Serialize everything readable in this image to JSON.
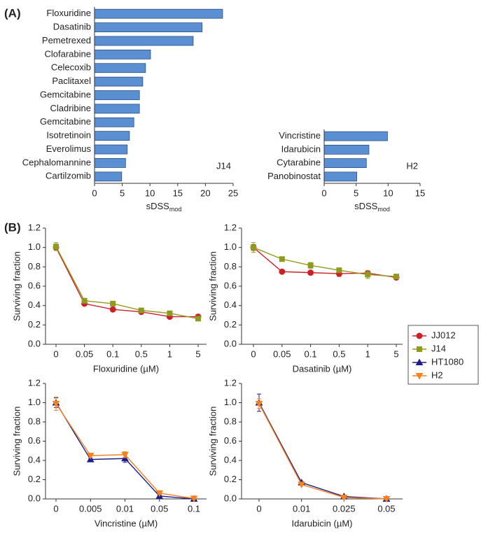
{
  "panel_labels": [
    "(A)",
    "(B)"
  ],
  "chart_data": [
    {
      "type": "hbar",
      "categories": [
        "Floxuridine",
        "Dasatinib",
        "Pemetrexed",
        "Clofarabine",
        "Celecoxib",
        "Paclitaxel",
        "Gemcitabine",
        "Cladribine",
        "Gemcitabine",
        "Isotretinoin",
        "Everolimus",
        "Cephalomannine",
        "Cartilzomib"
      ],
      "values": [
        23.1,
        19.4,
        17.8,
        10.1,
        9.2,
        8.7,
        8.1,
        8.1,
        7.1,
        6.3,
        5.9,
        5.6,
        4.9
      ],
      "color": "#5b8fd4",
      "xlim": [
        0,
        25
      ],
      "xticks": [
        0,
        5,
        10,
        15,
        20,
        25
      ],
      "xlabel": "sDSS",
      "xlabel_sub": "mod",
      "annotation": "J14"
    },
    {
      "type": "hbar",
      "categories": [
        "Vincristine",
        "Idarubicin",
        "Cytarabine",
        "Panobinostat"
      ],
      "values": [
        9.9,
        7.0,
        6.6,
        5.1
      ],
      "color": "#5b8fd4",
      "xlim": [
        0,
        15
      ],
      "xticks": [
        0,
        5,
        10,
        15
      ],
      "xlabel": "sDSS",
      "xlabel_sub": "mod",
      "annotation": "H2"
    },
    {
      "type": "line",
      "categories": [
        "0",
        "0.05",
        "0.1",
        "0.5",
        "1",
        "5"
      ],
      "xlabel": "Floxuridine (µM)",
      "ylabel": "Surviving fraction",
      "ylim": [
        0,
        1.2
      ],
      "yticks": [
        {
          "value": 0,
          "label": "0.0"
        },
        0.2,
        0.4,
        0.6,
        0.8,
        {
          "value": 1,
          "label": "1.0"
        },
        1.2
      ],
      "series": [
        {
          "name": "JJ012",
          "color": "#cc2127",
          "marker": "circle",
          "values": [
            1.0,
            0.42,
            0.36,
            0.335,
            0.285,
            0.285
          ],
          "errors": [
            0.03,
            0.01,
            0.01,
            0.01,
            0.01,
            0.01
          ]
        },
        {
          "name": "J14",
          "color": "#8f9a1e",
          "marker": "square",
          "values": [
            1.01,
            0.45,
            0.42,
            0.35,
            0.32,
            0.265
          ],
          "errors": [
            0.04,
            0.01,
            0.01,
            0.01,
            0.01,
            0.01
          ]
        }
      ]
    },
    {
      "type": "line",
      "categories": [
        "0",
        "0.05",
        "0.1",
        "0.5",
        "1",
        "5"
      ],
      "xlabel": "Dasatinib (µM)",
      "ylabel": "Surviving fraction",
      "ylim": [
        0,
        1.2
      ],
      "yticks": [
        {
          "value": 0,
          "label": "0.0"
        },
        0.2,
        0.4,
        0.6,
        0.8,
        {
          "value": 1,
          "label": "1.0"
        },
        1.2
      ],
      "series": [
        {
          "name": "JJ012",
          "color": "#cc2127",
          "marker": "circle",
          "values": [
            1.0,
            0.75,
            0.74,
            0.73,
            0.735,
            0.69
          ],
          "errors": [
            0.03,
            0.01,
            0.01,
            0.03,
            0.02,
            0.01
          ]
        },
        {
          "name": "J14",
          "color": "#8f9a1e",
          "marker": "square",
          "values": [
            1.0,
            0.88,
            0.815,
            0.765,
            0.72,
            0.7
          ],
          "errors": [
            0.05,
            0.02,
            0.03,
            0.02,
            0.04,
            0.02
          ]
        }
      ]
    },
    {
      "type": "line",
      "categories": [
        "0",
        "0.005",
        "0.01",
        "0.05",
        "0.1"
      ],
      "xlabel": "Vincristine (µM)",
      "ylabel": "Surviving fraction",
      "ylim": [
        0,
        1.2
      ],
      "yticks": [
        {
          "value": 0,
          "label": "0.0"
        },
        0.2,
        0.4,
        0.6,
        0.8,
        {
          "value": 1,
          "label": "1.0"
        },
        1.2
      ],
      "series": [
        {
          "name": "HT1080",
          "color": "#1c1c8f",
          "marker": "triangle-up",
          "values": [
            1.0,
            0.41,
            0.42,
            0.03,
            0.0
          ],
          "errors": [
            0.05,
            0.01,
            0.04,
            0.01,
            0.01
          ]
        },
        {
          "name": "H2",
          "color": "#f5821f",
          "marker": "triangle-down",
          "values": [
            0.99,
            0.45,
            0.46,
            0.06,
            0.005
          ],
          "errors": [
            0.07,
            0.02,
            0.03,
            0.01,
            0.01
          ]
        }
      ]
    },
    {
      "type": "line",
      "categories": [
        "0",
        "0.01",
        "0.025",
        "0.05"
      ],
      "xlabel": "Idarubicin (µM)",
      "ylabel": "Surviving fraction",
      "ylim": [
        0,
        1.2
      ],
      "yticks": [
        {
          "value": 0,
          "label": "0.0"
        },
        0.2,
        0.4,
        0.6,
        0.8,
        {
          "value": 1,
          "label": "1.0"
        },
        1.2
      ],
      "series": [
        {
          "name": "HT1080",
          "color": "#1c1c8f",
          "marker": "triangle-up",
          "values": [
            1.0,
            0.17,
            0.025,
            0.0
          ],
          "errors": [
            0.09,
            0.01,
            0.01,
            0.01
          ]
        },
        {
          "name": "H2",
          "color": "#f5821f",
          "marker": "triangle-down",
          "values": [
            0.99,
            0.15,
            0.015,
            0.0
          ],
          "errors": [
            0.05,
            0.01,
            0.01,
            0.01
          ]
        }
      ]
    }
  ]
}
